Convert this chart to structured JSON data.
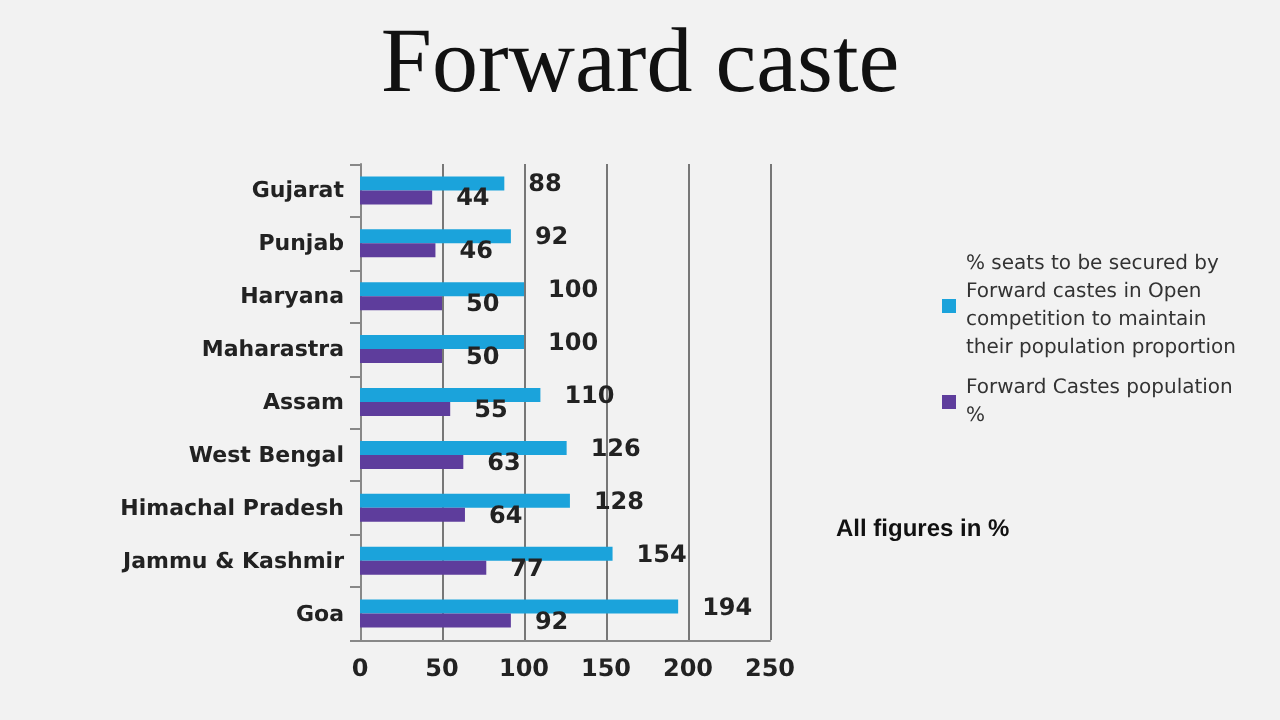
{
  "chart_data": {
    "type": "bar",
    "orientation": "horizontal",
    "title": "Forward caste",
    "categories": [
      "Gujarat",
      "Punjab",
      "Haryana",
      "Maharastra",
      "Assam",
      "West Bengal",
      "Himachal Pradesh",
      "Jammu & Kashmir",
      "Goa"
    ],
    "series": [
      {
        "name": "% seats to be secured by Forward castes in Open competition to maintain their population proportion",
        "color": "#1ba3db",
        "values": [
          88,
          92,
          100,
          100,
          110,
          126,
          128,
          154,
          194
        ]
      },
      {
        "name": "Forward Castes population %",
        "color": "#5e3d9c",
        "values": [
          44,
          46,
          50,
          50,
          55,
          63,
          64,
          77,
          92
        ]
      }
    ],
    "xlim": [
      0,
      250
    ],
    "xticks": [
      0,
      50,
      100,
      150,
      200,
      250
    ],
    "grid": "x",
    "legend": "right",
    "data_labels": true,
    "annotations": [
      "All figures in %"
    ]
  }
}
